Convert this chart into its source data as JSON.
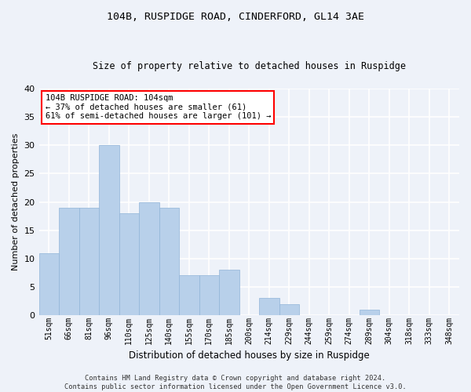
{
  "title": "104B, RUSPIDGE ROAD, CINDERFORD, GL14 3AE",
  "subtitle": "Size of property relative to detached houses in Ruspidge",
  "xlabel": "Distribution of detached houses by size in Ruspidge",
  "ylabel": "Number of detached properties",
  "bar_color": "#b8d0ea",
  "bar_edge_color": "#90b4d8",
  "background_color": "#eef2f9",
  "grid_color": "#ffffff",
  "categories": [
    "51sqm",
    "66sqm",
    "81sqm",
    "96sqm",
    "110sqm",
    "125sqm",
    "140sqm",
    "155sqm",
    "170sqm",
    "185sqm",
    "200sqm",
    "214sqm",
    "229sqm",
    "244sqm",
    "259sqm",
    "274sqm",
    "289sqm",
    "304sqm",
    "318sqm",
    "333sqm",
    "348sqm"
  ],
  "values": [
    11,
    19,
    19,
    30,
    18,
    20,
    19,
    7,
    7,
    8,
    0,
    3,
    2,
    0,
    0,
    0,
    1,
    0,
    0,
    0,
    0
  ],
  "ylim": [
    0,
    40
  ],
  "yticks": [
    0,
    5,
    10,
    15,
    20,
    25,
    30,
    35,
    40
  ],
  "annotation_box_text": "104B RUSPIDGE ROAD: 104sqm\n← 37% of detached houses are smaller (61)\n61% of semi-detached houses are larger (101) →",
  "footer_line1": "Contains HM Land Registry data © Crown copyright and database right 2024.",
  "footer_line2": "Contains public sector information licensed under the Open Government Licence v3.0.",
  "title_fontsize": 9.5,
  "subtitle_fontsize": 8.5,
  "xlabel_fontsize": 8.5,
  "ylabel_fontsize": 8,
  "tick_fontsize": 8,
  "xtick_fontsize": 7,
  "annotation_fontsize": 7.5,
  "footer_fontsize": 6.2
}
